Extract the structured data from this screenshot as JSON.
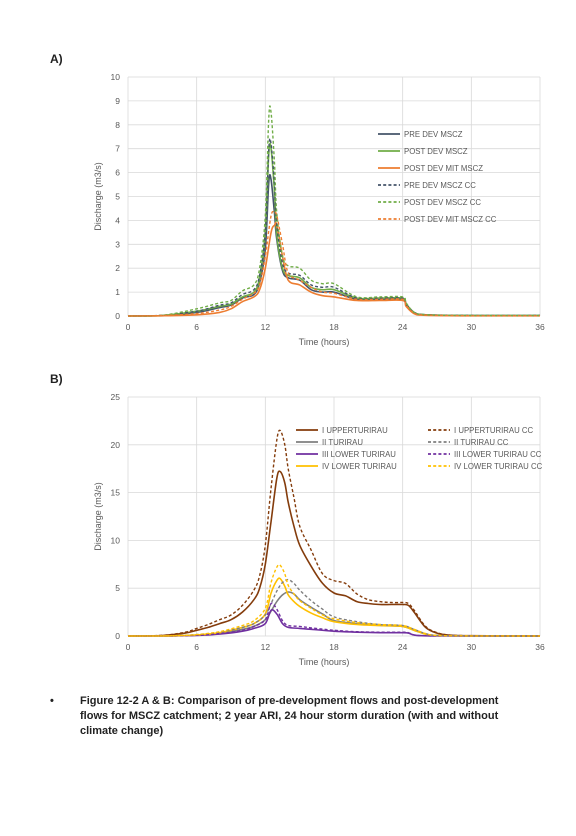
{
  "panels": {
    "a_label": "A)",
    "b_label": "B)"
  },
  "caption": {
    "bullet": "•",
    "text": "Figure 12-2 A & B: Comparison of pre-development flows and post-development flows for MSCZ catchment; 2 year ARI, 24 hour storm duration (with and without climate change)"
  },
  "chart_data": [
    {
      "id": "A",
      "type": "line",
      "xlabel": "Time (hours)",
      "ylabel": "Discharge (m3/s)",
      "xlim": [
        0,
        36
      ],
      "ylim": [
        0,
        10
      ],
      "xticks": [
        "0",
        "6",
        "12",
        "18",
        "24",
        "30",
        "36"
      ],
      "yticks": [
        "0",
        "1",
        "2",
        "3",
        "4",
        "5",
        "6",
        "7",
        "8",
        "9",
        "10"
      ],
      "grid": true,
      "legend_position": "right",
      "series": [
        {
          "name": "PRE DEV MSCZ",
          "color": "#44546a",
          "dash": false,
          "x": [
            0,
            3,
            6,
            8,
            9,
            10,
            11,
            11.5,
            12,
            12.3,
            12.5,
            12.8,
            13,
            13.5,
            14,
            15,
            16,
            17,
            18,
            20,
            22,
            24,
            24.3,
            25,
            26,
            30,
            36
          ],
          "y": [
            0,
            0.02,
            0.15,
            0.35,
            0.45,
            0.75,
            0.9,
            1.4,
            2.8,
            5.6,
            5.7,
            4.3,
            3.2,
            1.9,
            1.6,
            1.5,
            1.1,
            1.0,
            1.0,
            0.7,
            0.7,
            0.7,
            0.5,
            0.15,
            0.05,
            0.02,
            0.02
          ]
        },
        {
          "name": "POST DEV MSCZ",
          "color": "#70ad47",
          "dash": false,
          "x": [
            0,
            3,
            6,
            8,
            9,
            10,
            11,
            11.5,
            12,
            12.3,
            12.5,
            12.8,
            13,
            13.5,
            14,
            15,
            16,
            17,
            18,
            20,
            22,
            24,
            24.3,
            25,
            26,
            30,
            36
          ],
          "y": [
            0,
            0.02,
            0.2,
            0.4,
            0.5,
            0.8,
            1.0,
            1.6,
            3.5,
            6.8,
            7.0,
            5.2,
            3.4,
            2.0,
            1.7,
            1.6,
            1.2,
            1.1,
            1.1,
            0.75,
            0.75,
            0.75,
            0.5,
            0.15,
            0.05,
            0.02,
            0.02
          ]
        },
        {
          "name": "POST DEV MIT MSCZ",
          "color": "#ed7d31",
          "dash": false,
          "x": [
            0,
            3,
            6,
            8,
            9,
            10,
            11,
            11.5,
            12,
            12.5,
            12.8,
            13,
            13.5,
            14,
            15,
            16,
            17,
            18,
            20,
            22,
            24,
            24.3,
            25,
            26,
            30,
            36
          ],
          "y": [
            0,
            0.01,
            0.05,
            0.15,
            0.3,
            0.6,
            0.8,
            1.1,
            2.0,
            3.5,
            3.8,
            3.8,
            2.5,
            1.5,
            1.3,
            1.0,
            0.85,
            0.8,
            0.65,
            0.65,
            0.65,
            0.4,
            0.1,
            0.03,
            0.01,
            0.01
          ]
        },
        {
          "name": "PRE DEV MSCZ CC",
          "color": "#44546a",
          "dash": true,
          "x": [
            0,
            3,
            6,
            8,
            9,
            10,
            11,
            11.5,
            12,
            12.3,
            12.5,
            12.8,
            13,
            13.5,
            14,
            15,
            16,
            17,
            18,
            20,
            22,
            24,
            24.3,
            25,
            26,
            30,
            36
          ],
          "y": [
            0,
            0.03,
            0.2,
            0.45,
            0.55,
            0.9,
            1.1,
            1.7,
            3.5,
            7.0,
            7.2,
            5.5,
            3.8,
            2.2,
            1.8,
            1.7,
            1.3,
            1.2,
            1.2,
            0.75,
            0.75,
            0.75,
            0.5,
            0.15,
            0.05,
            0.02,
            0.02
          ]
        },
        {
          "name": "POST DEV MSCZ CC",
          "color": "#70ad47",
          "dash": true,
          "x": [
            0,
            3,
            6,
            8,
            9,
            10,
            11,
            11.5,
            12,
            12.3,
            12.5,
            12.8,
            13,
            13.5,
            14,
            15,
            16,
            17,
            18,
            20,
            22,
            24,
            24.3,
            25,
            26,
            30,
            36
          ],
          "y": [
            0,
            0.03,
            0.3,
            0.55,
            0.65,
            1.05,
            1.3,
            2.0,
            4.2,
            8.3,
            8.5,
            6.4,
            4.3,
            2.5,
            2.1,
            2.0,
            1.5,
            1.35,
            1.35,
            0.8,
            0.8,
            0.8,
            0.55,
            0.15,
            0.05,
            0.02,
            0.02
          ]
        },
        {
          "name": "POST DEV MIT MSCZ CC",
          "color": "#ed7d31",
          "dash": true,
          "x": [
            0,
            3,
            6,
            8,
            9,
            10,
            11,
            11.5,
            12,
            12.5,
            12.8,
            13,
            13.5,
            14,
            15,
            16,
            17,
            18,
            20,
            22,
            24,
            24.3,
            25,
            26,
            30,
            36
          ],
          "y": [
            0,
            0.02,
            0.1,
            0.25,
            0.4,
            0.7,
            0.95,
            1.3,
            2.5,
            4.2,
            4.3,
            4.2,
            3.0,
            1.8,
            1.5,
            1.2,
            1.0,
            0.95,
            0.7,
            0.7,
            0.7,
            0.45,
            0.12,
            0.04,
            0.01,
            0.01
          ]
        }
      ]
    },
    {
      "id": "B",
      "type": "line",
      "xlabel": "Time (hours)",
      "ylabel": "Discharge (m3/s)",
      "xlim": [
        0,
        36
      ],
      "ylim": [
        0,
        25
      ],
      "xticks": [
        "0",
        "6",
        "12",
        "18",
        "24",
        "30",
        "36"
      ],
      "yticks": [
        "0",
        "5",
        "10",
        "15",
        "20",
        "25"
      ],
      "grid": true,
      "legend_position": "top",
      "series": [
        {
          "name": "I UPPERTURIRAU",
          "color": "#843c0c",
          "dash": false,
          "x": [
            0,
            3,
            5,
            6,
            7,
            8,
            9,
            10,
            11,
            11.5,
            12,
            12.5,
            13,
            13.3,
            13.7,
            14,
            14.5,
            15,
            16,
            17,
            18,
            19,
            20,
            21,
            22,
            23,
            24,
            24.5,
            25,
            26,
            27,
            28,
            30,
            36
          ],
          "y": [
            0,
            0.05,
            0.3,
            0.6,
            0.9,
            1.3,
            1.7,
            2.5,
            3.8,
            5.0,
            7.5,
            12.0,
            16.5,
            17.2,
            16.0,
            14.0,
            11.5,
            9.5,
            7.3,
            5.5,
            4.5,
            4.2,
            3.6,
            3.4,
            3.3,
            3.3,
            3.3,
            3.2,
            2.5,
            0.9,
            0.3,
            0.1,
            0.03,
            0
          ]
        },
        {
          "name": "II TURIRAU",
          "color": "#7f7f7f",
          "dash": false,
          "x": [
            0,
            4,
            6,
            8,
            10,
            11,
            12,
            12.5,
            13,
            13.5,
            14,
            14.5,
            15,
            16,
            17,
            18,
            20,
            22,
            24,
            25,
            26,
            27,
            30,
            36
          ],
          "y": [
            0,
            0.02,
            0.1,
            0.3,
            0.7,
            1.0,
            1.7,
            2.6,
            3.6,
            4.3,
            4.6,
            4.4,
            3.8,
            3.0,
            2.3,
            1.6,
            1.3,
            1.1,
            1.0,
            0.6,
            0.2,
            0.05,
            0.01,
            0
          ]
        },
        {
          "name": "III LOWER TURIRAU",
          "color": "#7030a0",
          "dash": false,
          "x": [
            0,
            4,
            6,
            8,
            10,
            11,
            12,
            12.5,
            13,
            13.5,
            14,
            15,
            16,
            18,
            20,
            22,
            24,
            24.5,
            25,
            26,
            30,
            36
          ],
          "y": [
            0,
            0.01,
            0.05,
            0.2,
            0.5,
            0.8,
            1.3,
            2.7,
            2.3,
            1.3,
            0.9,
            0.8,
            0.7,
            0.5,
            0.4,
            0.35,
            0.35,
            0.3,
            0.1,
            0.02,
            0,
            0
          ]
        },
        {
          "name": "IV LOWER TURIRAU",
          "color": "#ffc000",
          "dash": false,
          "x": [
            0,
            4,
            6,
            8,
            10,
            11,
            12,
            12.5,
            13,
            13.3,
            13.7,
            14,
            14.5,
            15,
            16,
            17,
            18,
            20,
            22,
            24,
            25,
            26,
            27,
            30,
            36
          ],
          "y": [
            0,
            0.02,
            0.1,
            0.35,
            0.9,
            1.3,
            2.3,
            4.5,
            5.8,
            6.0,
            5.2,
            4.3,
            3.6,
            3.1,
            2.4,
            1.9,
            1.5,
            1.2,
            1.1,
            1.0,
            0.6,
            0.2,
            0.05,
            0.01,
            0
          ]
        },
        {
          "name": "I UPPERTURIRAU CC",
          "color": "#843c0c",
          "dash": true,
          "x": [
            0,
            3,
            5,
            6,
            7,
            8,
            9,
            10,
            11,
            11.5,
            12,
            12.5,
            13,
            13.3,
            13.7,
            14,
            14.5,
            15,
            16,
            17,
            18,
            19,
            20,
            21,
            22,
            23,
            24,
            24.5,
            25,
            26,
            27,
            28,
            30,
            36
          ],
          "y": [
            0,
            0.07,
            0.4,
            0.8,
            1.2,
            1.7,
            2.2,
            3.2,
            4.8,
            6.3,
            9.5,
            15.5,
            20.5,
            21.5,
            20.0,
            17.5,
            14.5,
            11.5,
            9.0,
            6.5,
            5.8,
            5.5,
            4.4,
            3.8,
            3.6,
            3.5,
            3.5,
            3.4,
            2.7,
            1.0,
            0.35,
            0.1,
            0.03,
            0
          ]
        },
        {
          "name": "II TURIRAU CC",
          "color": "#7f7f7f",
          "dash": true,
          "x": [
            0,
            4,
            6,
            8,
            10,
            11,
            12,
            12.5,
            13,
            13.5,
            14,
            14.5,
            15,
            16,
            17,
            18,
            20,
            22,
            24,
            25,
            26,
            27,
            30,
            36
          ],
          "y": [
            0,
            0.03,
            0.15,
            0.4,
            0.9,
            1.3,
            2.2,
            3.4,
            4.7,
            5.6,
            5.9,
            5.5,
            4.8,
            3.7,
            2.8,
            2.0,
            1.5,
            1.2,
            1.1,
            0.7,
            0.25,
            0.05,
            0.01,
            0
          ]
        },
        {
          "name": "III LOWER TURIRAU CC",
          "color": "#7030a0",
          "dash": true,
          "x": [
            0,
            4,
            6,
            8,
            10,
            11,
            12,
            12.5,
            13,
            13.5,
            14,
            15,
            16,
            18,
            20,
            22,
            24,
            24.5,
            25,
            26,
            30,
            36
          ],
          "y": [
            0,
            0.01,
            0.07,
            0.25,
            0.6,
            1.0,
            1.7,
            3.4,
            2.8,
            1.6,
            1.1,
            1.0,
            0.85,
            0.6,
            0.45,
            0.4,
            0.4,
            0.35,
            0.12,
            0.02,
            0,
            0
          ]
        },
        {
          "name": "IV LOWER TURIRAU CC",
          "color": "#ffc000",
          "dash": true,
          "x": [
            0,
            4,
            6,
            8,
            10,
            11,
            12,
            12.5,
            13,
            13.3,
            13.7,
            14,
            14.5,
            15,
            16,
            17,
            18,
            20,
            22,
            24,
            25,
            26,
            27,
            30,
            36
          ],
          "y": [
            0,
            0.03,
            0.15,
            0.45,
            1.1,
            1.6,
            2.9,
            5.6,
            7.2,
            7.4,
            6.5,
            5.3,
            4.4,
            3.7,
            2.9,
            2.2,
            1.8,
            1.4,
            1.2,
            1.1,
            0.7,
            0.25,
            0.05,
            0.01,
            0
          ]
        }
      ]
    }
  ]
}
